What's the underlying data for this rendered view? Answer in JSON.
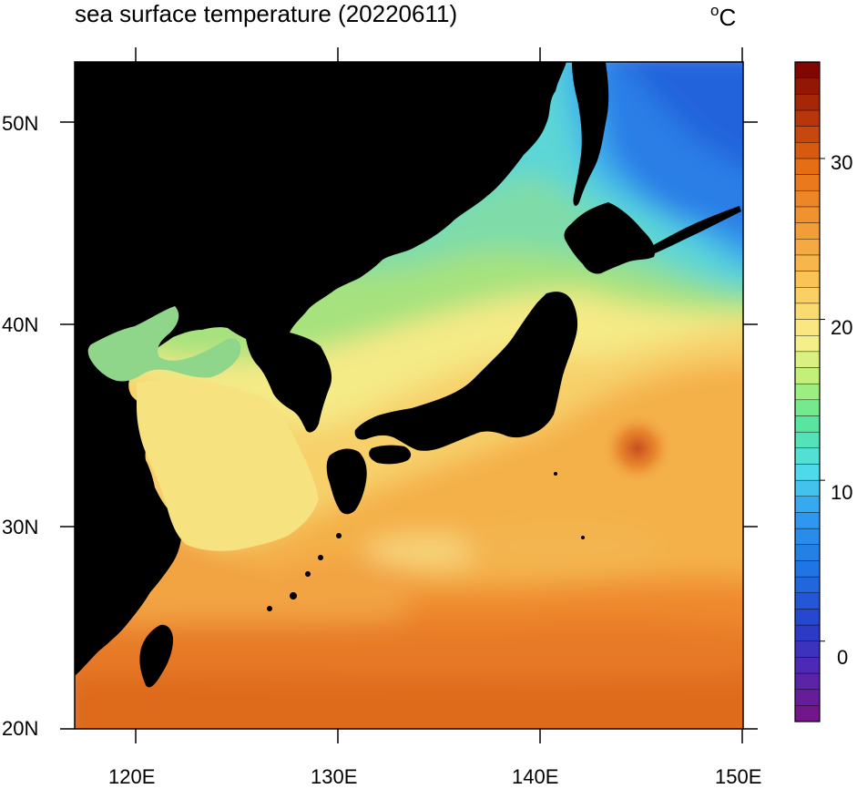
{
  "title": "sea surface temperature (20220611)",
  "units": {
    "degree_symbol": "o",
    "letter": "C"
  },
  "map": {
    "lon_ticks": [
      "120E",
      "130E",
      "140E",
      "150E"
    ],
    "lat_ticks": [
      "50N",
      "40N",
      "30N",
      "20N"
    ],
    "lon_range": [
      117,
      150
    ],
    "lat_range": [
      20,
      53
    ],
    "land_color": "#000000"
  },
  "colorbar": {
    "labels": [
      "30",
      "20",
      "10",
      "0"
    ],
    "range": [
      -5,
      36
    ]
  }
}
